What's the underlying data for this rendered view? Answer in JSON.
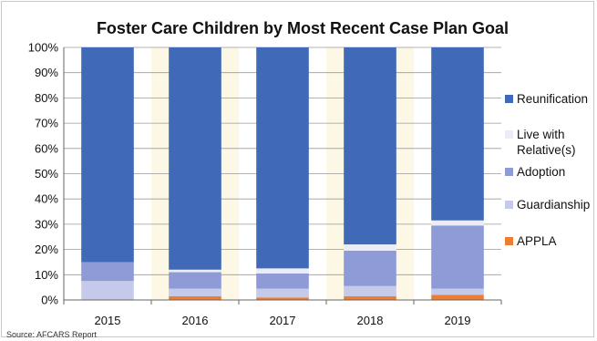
{
  "chart_data": {
    "type": "bar",
    "stacked": true,
    "title": "Foster Care Children by Most Recent Case Plan Goal",
    "source": "Source: AFCARS Report",
    "categories": [
      "2015",
      "2016",
      "2017",
      "2018",
      "2019"
    ],
    "ylim": [
      0,
      100
    ],
    "yticks": [
      "0%",
      "10%",
      "20%",
      "30%",
      "40%",
      "50%",
      "60%",
      "70%",
      "80%",
      "90%",
      "100%"
    ],
    "grid": true,
    "legend_position": "right",
    "series": [
      {
        "name": "APPLA",
        "color": "#ed7d31",
        "values": [
          0.0,
          1.5,
          1.0,
          1.5,
          2.0
        ]
      },
      {
        "name": "Guardianship",
        "color": "#c5c9ea",
        "values": [
          7.5,
          3.0,
          3.5,
          4.0,
          2.5
        ]
      },
      {
        "name": "Adoption",
        "color": "#8e9bd6",
        "values": [
          7.5,
          6.5,
          6.0,
          14.0,
          25.0
        ]
      },
      {
        "name": "Live with Relative(s)",
        "color": "#eaedf8",
        "values": [
          0.0,
          1.0,
          2.0,
          2.5,
          2.0
        ]
      },
      {
        "name": "Reunification",
        "color": "#4069b7",
        "values": [
          85.0,
          88.0,
          87.5,
          78.0,
          68.5
        ]
      }
    ],
    "legend_order": [
      "Reunification",
      "Live with Relative(s)",
      "Adoption",
      "Guardianship",
      "APPLA"
    ]
  }
}
